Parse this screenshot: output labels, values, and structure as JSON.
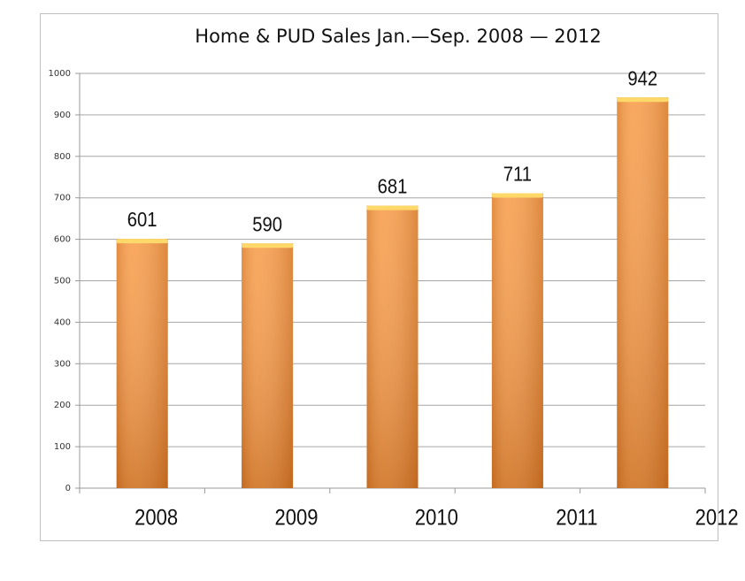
{
  "chart_data": {
    "type": "bar",
    "title": "Home & PUD Sales Jan.—Sep. 2008 — 2012",
    "categories": [
      "2008",
      "2009",
      "2010",
      "2011",
      "2012"
    ],
    "values": [
      601,
      590,
      681,
      711,
      942
    ],
    "color": "#f7943a",
    "ylim": [
      0,
      1000
    ],
    "yticks": [
      0,
      100,
      200,
      300,
      400,
      500,
      600,
      700,
      800,
      900,
      1000
    ],
    "grid": true
  }
}
